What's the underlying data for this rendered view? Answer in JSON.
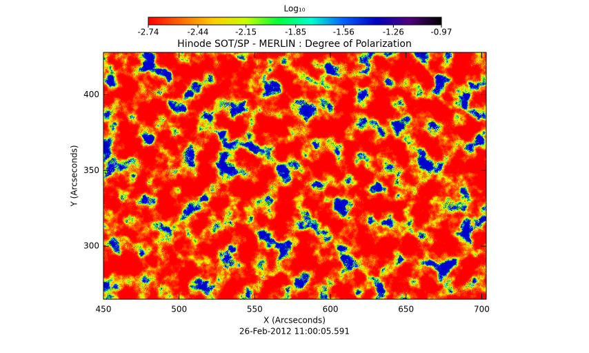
{
  "chart_data": {
    "type": "heatmap",
    "title": "Hinode SOT/SP - MERLIN : Degree of Polarization",
    "xlabel": "X (Arcseconds)",
    "ylabel": "Y (Arcseconds)",
    "footer": "26-Feb-2012 11:00:05.591",
    "xlim": [
      450,
      703
    ],
    "xticks": [
      450,
      500,
      550,
      600,
      650,
      700
    ],
    "ylim": [
      265,
      428
    ],
    "yticks": [
      300,
      350,
      400
    ],
    "colorbar": {
      "label": "Log₁₀",
      "lim": [
        -2.74,
        -0.97
      ],
      "ticks": [
        -2.74,
        -2.44,
        -2.15,
        -1.85,
        -1.56,
        -1.26,
        -0.97
      ],
      "colors": [
        "#ff0000",
        "#ff6a00",
        "#ffcc00",
        "#c8ff00",
        "#00ff3c",
        "#00ffd0",
        "#0060ff",
        "#0000c0",
        "#500080",
        "#000000"
      ]
    }
  }
}
